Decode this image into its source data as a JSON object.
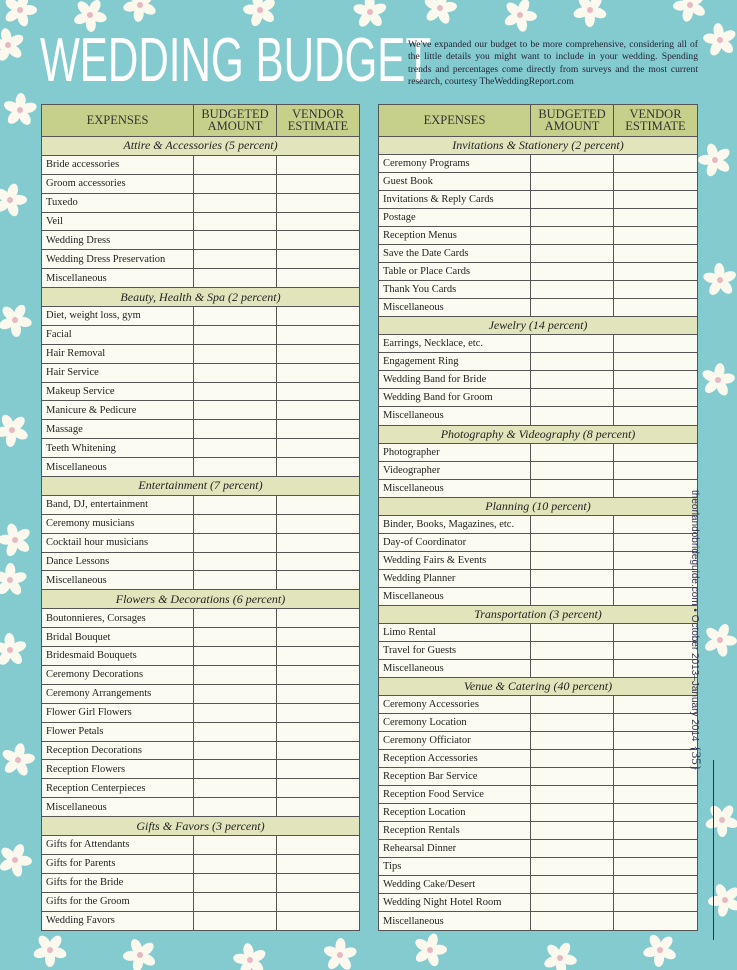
{
  "title": "WEDDING BUDGET",
  "intro": "We've expanded our budget to be more comprehensive, considering all of the little details you might want to include in your wedding. Spending trends and percentages come directly from surveys and the most current research, courtesy TheWeddingReport.com",
  "columns": [
    "EXPENSES",
    "BUDGETED AMOUNT",
    "VENDOR ESTIMATE"
  ],
  "colors": {
    "background": "#84cbcf",
    "header": "#c7d08a",
    "section": "#e2e5bb",
    "row": "#fbfbf1"
  },
  "side_text": "theorlandobrideguide.com • October 2013–January 2014",
  "page_number": "{35}",
  "left_sections": [
    {
      "title": "Attire & Accessories (5 percent)",
      "items": [
        "Bride accessories",
        "Groom accessories",
        "Tuxedo",
        "Veil",
        "Wedding Dress",
        "Wedding Dress Preservation",
        "Miscellaneous"
      ]
    },
    {
      "title": "Beauty, Health & Spa (2 percent)",
      "items": [
        "Diet, weight loss, gym",
        "Facial",
        "Hair Removal",
        "Hair Service",
        "Makeup Service",
        "Manicure & Pedicure",
        "Massage",
        "Teeth Whitening",
        "Miscellaneous"
      ]
    },
    {
      "title": "Entertainment (7 percent)",
      "items": [
        "Band, DJ, entertainment",
        "Ceremony musicians",
        "Cocktail hour musicians",
        "Dance Lessons",
        "Miscellaneous"
      ]
    },
    {
      "title": "Flowers & Decorations (6 percent)",
      "items": [
        "Boutonnieres, Corsages",
        "Bridal Bouquet",
        "Bridesmaid Bouquets",
        "Ceremony Decorations",
        "Ceremony Arrangements",
        "Flower Girl Flowers",
        "Flower Petals",
        "Reception Decorations",
        "Reception Flowers",
        "Reception Centerpieces",
        "Miscellaneous"
      ]
    },
    {
      "title": "Gifts & Favors (3 percent)",
      "items": [
        "Gifts for Attendants",
        "Gifts for Parents",
        "Gifts for the Bride",
        "Gifts for the Groom",
        "Wedding Favors"
      ]
    }
  ],
  "right_sections": [
    {
      "title": "Invitations & Stationery (2 percent)",
      "items": [
        "Ceremony Programs",
        "Guest Book",
        "Invitations & Reply Cards",
        "Postage",
        "Reception Menus",
        "Save the Date Cards",
        "Table or Place Cards",
        "Thank You Cards",
        "Miscellaneous"
      ]
    },
    {
      "title": "Jewelry (14 percent)",
      "items": [
        "Earrings, Necklace, etc.",
        "Engagement Ring",
        "Wedding Band for Bride",
        "Wedding Band for Groom",
        "Miscellaneous"
      ]
    },
    {
      "title": "Photography & Videography (8 percent)",
      "items": [
        "Photographer",
        "Videographer",
        "Miscellaneous"
      ]
    },
    {
      "title": "Planning (10 percent)",
      "items": [
        "Binder, Books, Magazines, etc.",
        "Day-of Coordinator",
        "Wedding Fairs & Events",
        "Wedding Planner",
        "Miscellaneous"
      ]
    },
    {
      "title": "Transportation (3 percent)",
      "items": [
        "Limo Rental",
        "Travel for Guests",
        "Miscellaneous"
      ]
    },
    {
      "title": "Venue & Catering (40 percent)",
      "items": [
        "Ceremony Accessories",
        "Ceremony Location",
        "Ceremony Officiator",
        "Reception Accessories",
        "Reception Bar Service",
        "Reception Food Service",
        "Reception Location",
        "Reception Rentals",
        "Rehearsal Dinner",
        "Tips",
        "Wedding Cake/Desert",
        "Wedding Night Hotel Room",
        "Miscellaneous"
      ]
    }
  ]
}
